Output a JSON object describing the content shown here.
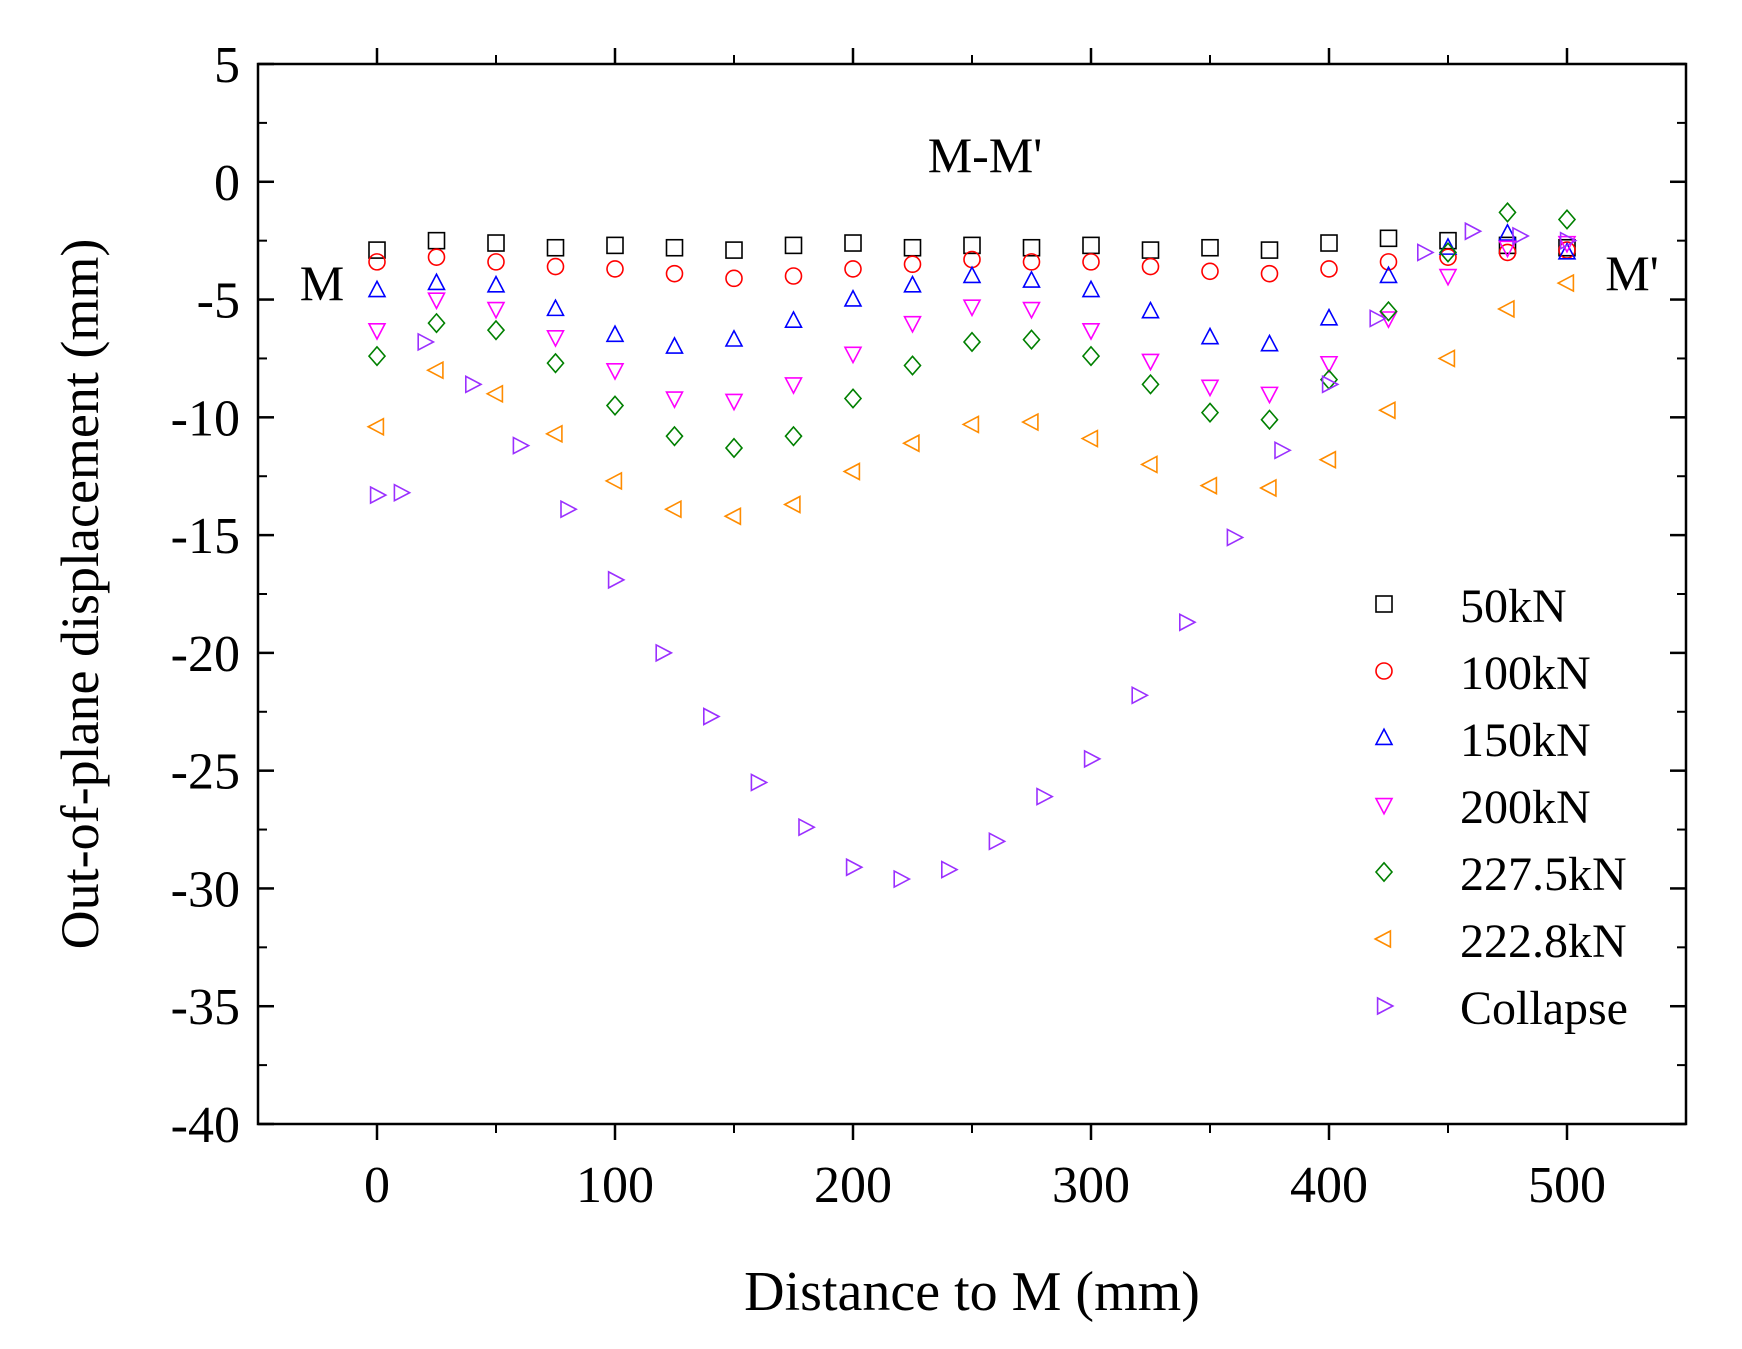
{
  "chart_data": {
    "type": "scatter",
    "title": "M-M'",
    "left_end_label": "M",
    "right_end_label": "M'",
    "xlabel": "Distance to M (mm)",
    "ylabel": "Out-of-plane displacement (mm)",
    "xlim": [
      -50,
      550
    ],
    "ylim": [
      -40,
      5
    ],
    "xticks": [
      0,
      100,
      200,
      300,
      400,
      500
    ],
    "xtick_labels": [
      "0",
      "100",
      "200",
      "300",
      "400",
      "500"
    ],
    "yticks": [
      5,
      0,
      -5,
      -10,
      -15,
      -20,
      -25,
      -30,
      -35,
      -40
    ],
    "ytick_labels": [
      "5",
      "0",
      "-5",
      "-10",
      "-15",
      "-20",
      "-25",
      "-30",
      "-35",
      "-40"
    ],
    "grid": false,
    "legend_position": "lower-right",
    "series": [
      {
        "name": "50kN",
        "marker": "square",
        "color": "#000000",
        "x": [
          0,
          25,
          50,
          75,
          100,
          125,
          150,
          175,
          200,
          225,
          250,
          275,
          300,
          325,
          350,
          375,
          400,
          425,
          450,
          475,
          500
        ],
        "y": [
          -2.9,
          -2.5,
          -2.6,
          -2.8,
          -2.7,
          -2.8,
          -2.9,
          -2.7,
          -2.6,
          -2.8,
          -2.7,
          -2.8,
          -2.7,
          -2.9,
          -2.8,
          -2.9,
          -2.6,
          -2.4,
          -2.5,
          -2.7,
          -2.8
        ]
      },
      {
        "name": "100kN",
        "marker": "circle",
        "color": "#ff0000",
        "x": [
          0,
          25,
          50,
          75,
          100,
          125,
          150,
          175,
          200,
          225,
          250,
          275,
          300,
          325,
          350,
          375,
          400,
          425,
          450,
          475,
          500
        ],
        "y": [
          -3.4,
          -3.2,
          -3.4,
          -3.6,
          -3.7,
          -3.9,
          -4.1,
          -4.0,
          -3.7,
          -3.5,
          -3.3,
          -3.4,
          -3.4,
          -3.6,
          -3.8,
          -3.9,
          -3.7,
          -3.4,
          -3.2,
          -3.0,
          -2.9
        ]
      },
      {
        "name": "150kN",
        "marker": "triangle-up",
        "color": "#0000ff",
        "x": [
          0,
          25,
          50,
          75,
          100,
          125,
          150,
          175,
          200,
          225,
          250,
          275,
          300,
          325,
          350,
          375,
          400,
          425,
          450,
          475,
          500
        ],
        "y": [
          -4.6,
          -4.3,
          -4.4,
          -5.4,
          -6.5,
          -7.0,
          -6.7,
          -5.9,
          -5.0,
          -4.4,
          -4.0,
          -4.2,
          -4.6,
          -5.5,
          -6.6,
          -6.9,
          -5.8,
          -4.0,
          -2.8,
          -2.2,
          -3.0
        ]
      },
      {
        "name": "200kN",
        "marker": "triangle-down",
        "color": "#ff00ff",
        "x": [
          0,
          25,
          50,
          75,
          100,
          125,
          150,
          175,
          200,
          225,
          250,
          275,
          300,
          325,
          350,
          375,
          400,
          425,
          450,
          475,
          500
        ],
        "y": [
          -6.3,
          -5.0,
          -5.4,
          -6.6,
          -8.0,
          -9.2,
          -9.3,
          -8.6,
          -7.3,
          -6.0,
          -5.3,
          -5.4,
          -6.3,
          -7.6,
          -8.7,
          -9.0,
          -7.7,
          -5.8,
          -4.0,
          -2.8,
          -2.6
        ]
      },
      {
        "name": "227.5kN",
        "marker": "diamond",
        "color": "#008000",
        "x": [
          0,
          25,
          50,
          75,
          100,
          125,
          150,
          175,
          200,
          225,
          250,
          275,
          300,
          325,
          350,
          375,
          400,
          425,
          450,
          475,
          500
        ],
        "y": [
          -7.4,
          -6.0,
          -6.3,
          -7.7,
          -9.5,
          -10.8,
          -11.3,
          -10.8,
          -9.2,
          -7.8,
          -6.8,
          -6.7,
          -7.4,
          -8.6,
          -9.8,
          -10.1,
          -8.4,
          -5.5,
          -3.0,
          -1.3,
          -1.6
        ]
      },
      {
        "name": "222.8kN",
        "marker": "triangle-left",
        "color": "#ff8c00",
        "x": [
          0,
          25,
          50,
          75,
          100,
          125,
          150,
          175,
          200,
          225,
          250,
          275,
          300,
          325,
          350,
          375,
          400,
          425,
          450,
          475,
          500
        ],
        "y": [
          -10.4,
          -8.0,
          -9.0,
          -10.7,
          -12.7,
          -13.9,
          -14.2,
          -13.7,
          -12.3,
          -11.1,
          -10.3,
          -10.2,
          -10.9,
          -12.0,
          -12.9,
          -13.0,
          -11.8,
          -9.7,
          -7.5,
          -5.4,
          -4.3
        ]
      },
      {
        "name": "Collapse",
        "marker": "triangle-right",
        "color": "#9b30ff",
        "x": [
          0,
          10,
          20,
          40,
          60,
          80,
          100,
          120,
          140,
          160,
          180,
          200,
          220,
          240,
          260,
          280,
          300,
          320,
          340,
          360,
          380,
          400,
          420,
          440,
          460,
          480,
          500
        ],
        "y": [
          -13.3,
          -13.2,
          -6.8,
          -8.6,
          -11.2,
          -13.9,
          -16.9,
          -20.0,
          -22.7,
          -25.5,
          -27.4,
          -29.1,
          -29.6,
          -29.2,
          -28.0,
          -26.1,
          -24.5,
          -21.8,
          -18.7,
          -15.1,
          -11.4,
          -8.6,
          -5.8,
          -3.0,
          -2.1,
          -2.3,
          -2.5
        ]
      }
    ]
  }
}
